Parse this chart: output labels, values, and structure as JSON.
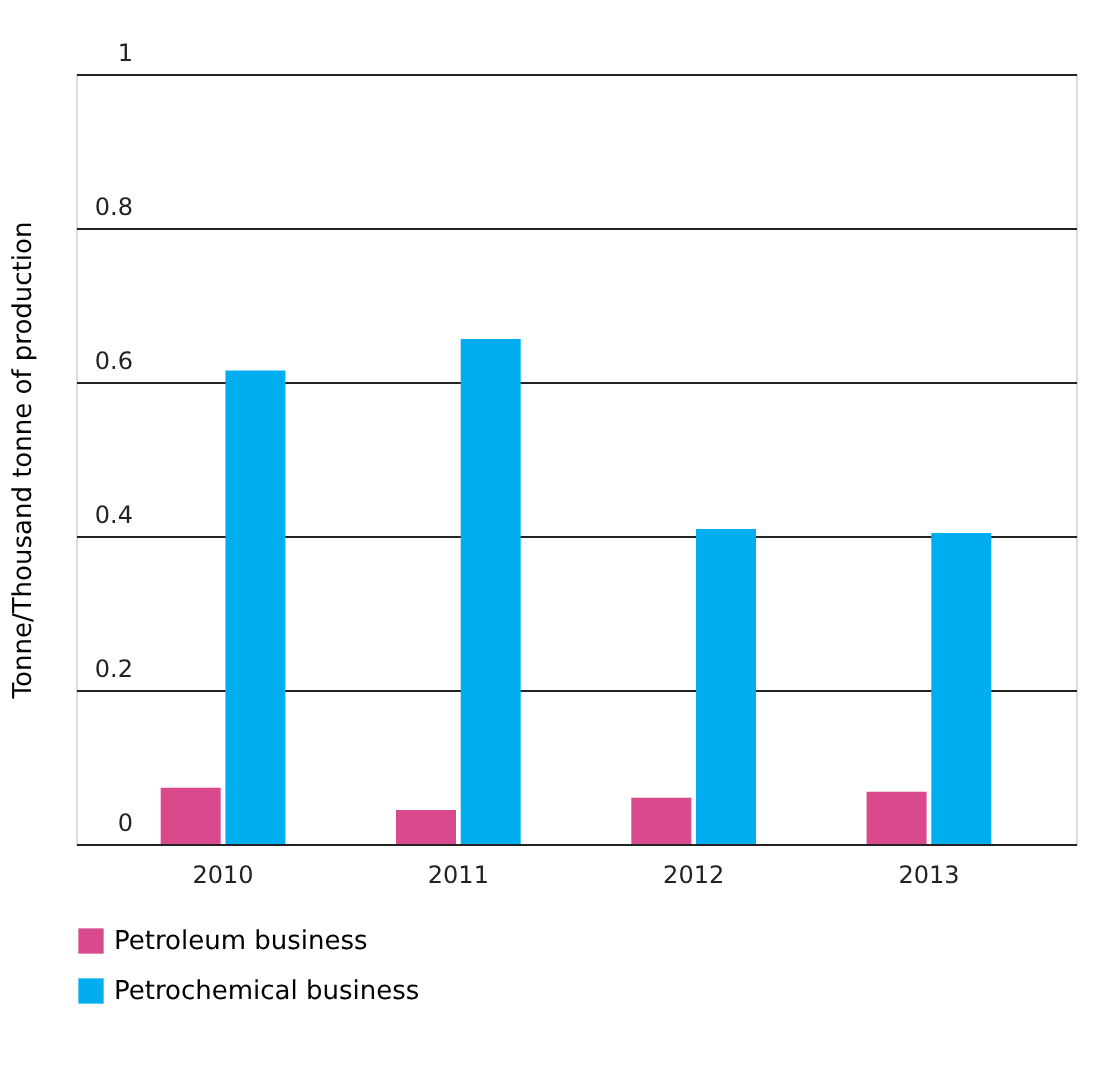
{
  "chart_data": {
    "type": "bar",
    "ylabel": "Tonne/Thousand tonne of production",
    "categories": [
      "2010",
      "2011",
      "2012",
      "2013"
    ],
    "series": [
      {
        "name": "Petroleum business",
        "color": "#d94a8c",
        "values": [
          0.073,
          0.044,
          0.06,
          0.068
        ]
      },
      {
        "name": "Petrochemical business",
        "color": "#00adef",
        "values": [
          0.615,
          0.656,
          0.409,
          0.404
        ]
      }
    ],
    "ylim": [
      0,
      1
    ],
    "yticks": [
      0,
      0.2,
      0.4,
      0.6,
      0.8,
      1
    ],
    "grid": "y",
    "legend": "bottom left"
  }
}
